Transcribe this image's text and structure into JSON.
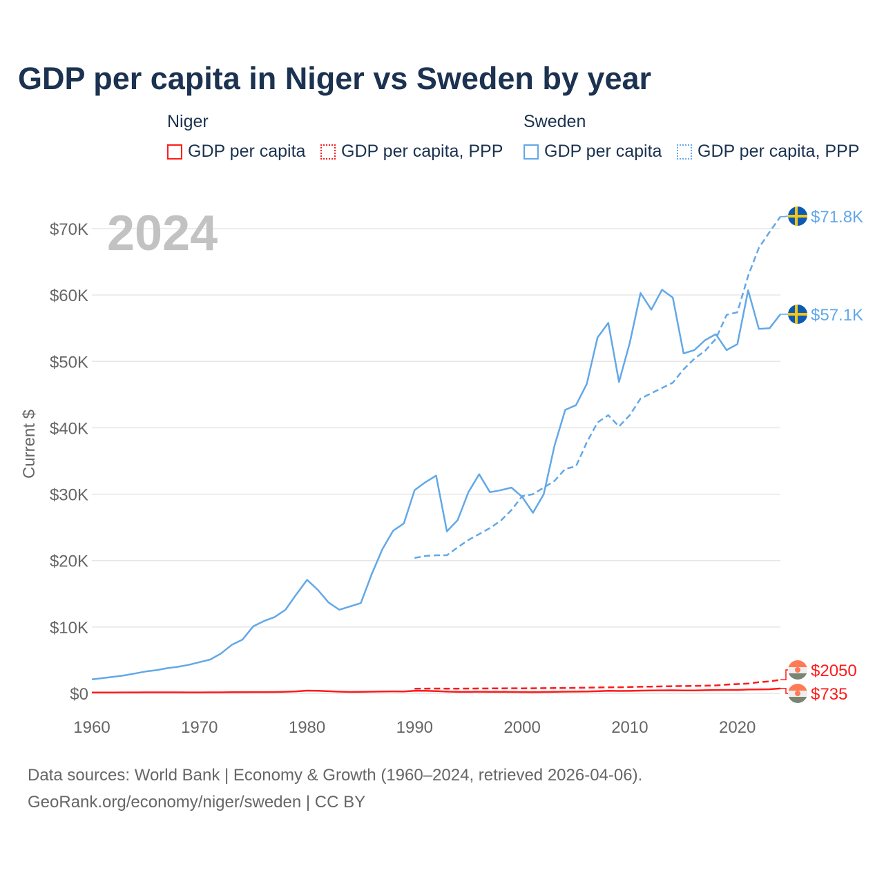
{
  "title": "GDP per capita in Niger vs Sweden by year",
  "legend": {
    "groups": [
      {
        "name": "Niger",
        "items": [
          "GDP per capita",
          "GDP per capita, PPP"
        ],
        "color": "#ff1a1a"
      },
      {
        "name": "Sweden",
        "items": [
          "GDP per capita",
          "GDP per capita, PPP"
        ],
        "color": "#62a8e8"
      }
    ]
  },
  "footer": {
    "line1": "Data sources: World Bank | Economy & Growth (1960–2024, retrieved 2026-04-06).",
    "line2": "GeoRank.org/economy/niger/sweden | CC BY"
  },
  "chart_data": {
    "type": "line",
    "title": "GDP per capita in Niger vs Sweden by year",
    "year_watermark": "2024",
    "ylabel": "Current $",
    "xlabel": "",
    "xlim": [
      1960,
      2024
    ],
    "ylim": [
      0,
      70000
    ],
    "x_ticks": [
      "1960",
      "1970",
      "1980",
      "1990",
      "2000",
      "2010",
      "2020"
    ],
    "y_ticks": [
      "$0",
      "$10K",
      "$20K",
      "$30K",
      "$40K",
      "$50K",
      "$60K",
      "$70K"
    ],
    "grid": true,
    "series": [
      {
        "name": "Sweden GDP per capita",
        "country": "Sweden",
        "style": "solid",
        "color": "#62a8e8",
        "start": 1960,
        "end_label": "$57.1K",
        "values": [
          2100,
          2300,
          2500,
          2700,
          3000,
          3300,
          3500,
          3800,
          4000,
          4300,
          4700,
          5100,
          6000,
          7300,
          8100,
          10100,
          10900,
          11500,
          12600,
          14900,
          17100,
          15600,
          13700,
          12600,
          13100,
          13600,
          17900,
          21700,
          24500,
          25600,
          30600,
          31800,
          32800,
          24400,
          26100,
          30300,
          33000,
          30300,
          30600,
          31000,
          29600,
          27200,
          30000,
          37300,
          42700,
          43400,
          46600,
          53600,
          55800,
          46900,
          52800,
          60300,
          57800,
          60800,
          59600,
          51200,
          51700,
          53200,
          54100,
          51700,
          52600,
          60700,
          54900,
          55000,
          57100
        ]
      },
      {
        "name": "Sweden GDP per capita, PPP",
        "country": "Sweden",
        "style": "dashed",
        "color": "#62a8e8",
        "start": 1990,
        "end_label": "$71.8K",
        "values": [
          20400,
          20700,
          20800,
          20800,
          22000,
          23100,
          24000,
          24900,
          26000,
          27600,
          29700,
          30000,
          31000,
          32000,
          33800,
          34200,
          37800,
          40800,
          41900,
          40200,
          41900,
          44400,
          45200,
          46000,
          46800,
          48800,
          50400,
          51600,
          53400,
          57000,
          57400,
          62900,
          67100,
          69500,
          71800
        ]
      },
      {
        "name": "Niger GDP per capita",
        "country": "Niger",
        "style": "solid",
        "color": "#ff1a1a",
        "start": 1960,
        "end_label": "$735",
        "values": [
          130,
          135,
          140,
          145,
          150,
          155,
          160,
          160,
          155,
          150,
          150,
          155,
          160,
          180,
          190,
          200,
          200,
          210,
          250,
          300,
          420,
          380,
          320,
          260,
          220,
          230,
          260,
          280,
          300,
          290,
          400,
          380,
          340,
          270,
          230,
          240,
          250,
          230,
          240,
          220,
          200,
          190,
          210,
          230,
          260,
          270,
          290,
          320,
          380,
          360,
          370,
          420,
          440,
          460,
          470,
          440,
          450,
          480,
          510,
          520,
          520,
          580,
          590,
          620,
          735
        ]
      },
      {
        "name": "Niger GDP per capita, PPP",
        "country": "Niger",
        "style": "dashed",
        "color": "#ff1a1a",
        "start": 1990,
        "end_label": "$2050",
        "values": [
          700,
          720,
          730,
          720,
          720,
          730,
          740,
          750,
          760,
          770,
          760,
          770,
          790,
          800,
          810,
          830,
          860,
          890,
          920,
          930,
          960,
          1000,
          1020,
          1050,
          1080,
          1100,
          1120,
          1150,
          1200,
          1320,
          1400,
          1480,
          1680,
          1800,
          2050
        ]
      }
    ]
  }
}
